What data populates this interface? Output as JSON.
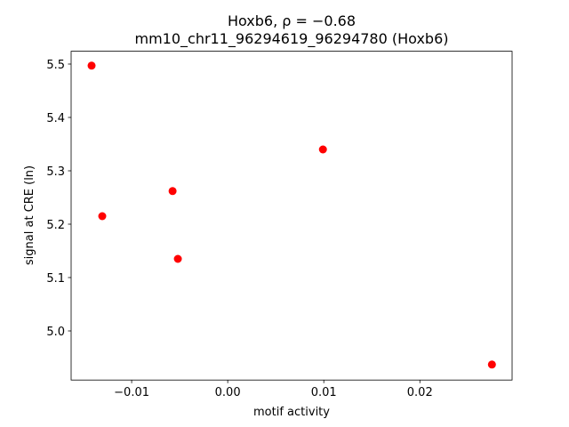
{
  "chart_data": {
    "type": "scatter",
    "title": "Hoxb6, ρ = −0.68",
    "subtitle": "mm10_chr11_96294619_96294780 (Hoxb6)",
    "x_label": "motif activity",
    "y_label": "signal at CRE (ln)",
    "x": [
      -0.01417,
      -0.01306,
      -0.00574,
      -0.00519,
      0.00991,
      0.0275
    ],
    "values": [
      5.497,
      5.215,
      5.262,
      5.135,
      5.34,
      4.937
    ],
    "color": "#ff0000",
    "xlim": [
      -0.0163,
      0.0296
    ],
    "ylim": [
      4.908,
      5.524
    ],
    "xticks": [
      {
        "value": -0.01,
        "label": "−0.01"
      },
      {
        "value": 0,
        "label": "0.00"
      },
      0.01,
      0.02
    ],
    "yticks": [
      {
        "value": 5.0,
        "label": "5.0"
      },
      5.1,
      5.2,
      5.3,
      5.4,
      5.5
    ],
    "grid": false
  }
}
